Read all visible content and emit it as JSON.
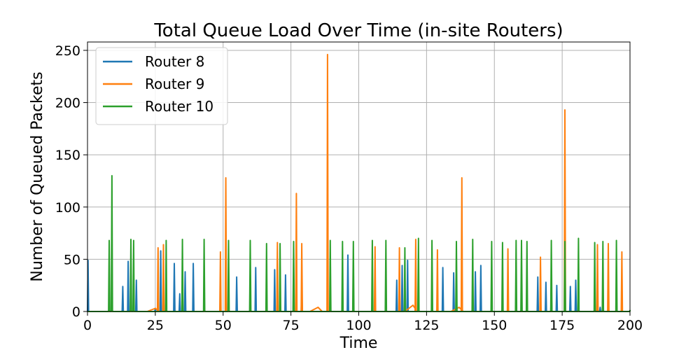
{
  "chart_data": {
    "type": "line",
    "title": "Total Queue Load Over Time (in-site Routers)",
    "xlabel": "Time",
    "ylabel": "Number of Queued Packets",
    "xlim": [
      0,
      200
    ],
    "ylim": [
      0,
      258
    ],
    "xticks": [
      0,
      25,
      50,
      75,
      100,
      125,
      150,
      175,
      200
    ],
    "yticks": [
      0,
      50,
      100,
      150,
      200,
      250
    ],
    "grid": true,
    "legend_position": "top-left",
    "series": [
      {
        "name": "Router 8",
        "color": "#1f77b4",
        "spikes": [
          [
            0.2,
            49
          ],
          [
            13,
            24
          ],
          [
            15,
            48
          ],
          [
            18,
            30
          ],
          [
            25,
            3
          ],
          [
            27,
            58
          ],
          [
            32,
            46
          ],
          [
            34,
            17
          ],
          [
            36,
            38
          ],
          [
            39,
            46
          ],
          [
            55,
            33
          ],
          [
            62,
            42
          ],
          [
            69,
            40
          ],
          [
            73,
            35
          ],
          [
            79,
            22
          ],
          [
            96,
            54
          ],
          [
            114,
            30
          ],
          [
            116,
            44
          ],
          [
            118,
            49
          ],
          [
            131,
            42
          ],
          [
            135,
            37
          ],
          [
            143,
            38
          ],
          [
            145,
            44
          ],
          [
            166,
            33
          ],
          [
            169,
            28
          ],
          [
            171,
            20
          ],
          [
            173,
            25
          ],
          [
            178,
            24
          ],
          [
            180,
            30
          ],
          [
            189,
            4
          ],
          [
            190,
            22
          ]
        ]
      },
      {
        "name": "Router 9",
        "color": "#ff7f0e",
        "spikes": [
          [
            26,
            61
          ],
          [
            28,
            64
          ],
          [
            49,
            57
          ],
          [
            51,
            128
          ],
          [
            70,
            66
          ],
          [
            77,
            113
          ],
          [
            79,
            65
          ],
          [
            88.5,
            246
          ],
          [
            106,
            62
          ],
          [
            115,
            61
          ],
          [
            121,
            69
          ],
          [
            129,
            59
          ],
          [
            138,
            128
          ],
          [
            155,
            60
          ],
          [
            167,
            52
          ],
          [
            176,
            193
          ],
          [
            188,
            64
          ],
          [
            192,
            65
          ],
          [
            197,
            57
          ]
        ],
        "humps": [
          [
            25,
            3
          ],
          [
            85,
            4
          ],
          [
            120,
            6
          ],
          [
            137,
            4
          ]
        ]
      },
      {
        "name": "Router 10",
        "color": "#2ca02c",
        "spikes": [
          [
            8,
            68
          ],
          [
            9,
            130
          ],
          [
            16,
            69
          ],
          [
            17,
            68
          ],
          [
            29,
            68
          ],
          [
            35,
            69
          ],
          [
            43,
            69
          ],
          [
            52,
            68
          ],
          [
            60,
            68
          ],
          [
            66,
            65
          ],
          [
            71,
            65
          ],
          [
            76,
            67
          ],
          [
            89.5,
            68
          ],
          [
            94,
            67
          ],
          [
            98,
            67
          ],
          [
            105,
            68
          ],
          [
            110,
            68
          ],
          [
            117,
            61
          ],
          [
            122,
            70
          ],
          [
            127,
            68
          ],
          [
            136,
            67
          ],
          [
            142,
            69
          ],
          [
            149,
            67
          ],
          [
            153,
            66
          ],
          [
            158,
            68
          ],
          [
            160,
            68
          ],
          [
            162,
            67
          ],
          [
            171,
            68
          ],
          [
            176,
            67
          ],
          [
            181,
            70
          ],
          [
            187,
            66
          ],
          [
            190,
            67
          ],
          [
            195,
            68
          ],
          [
            200,
            1
          ]
        ]
      }
    ]
  }
}
